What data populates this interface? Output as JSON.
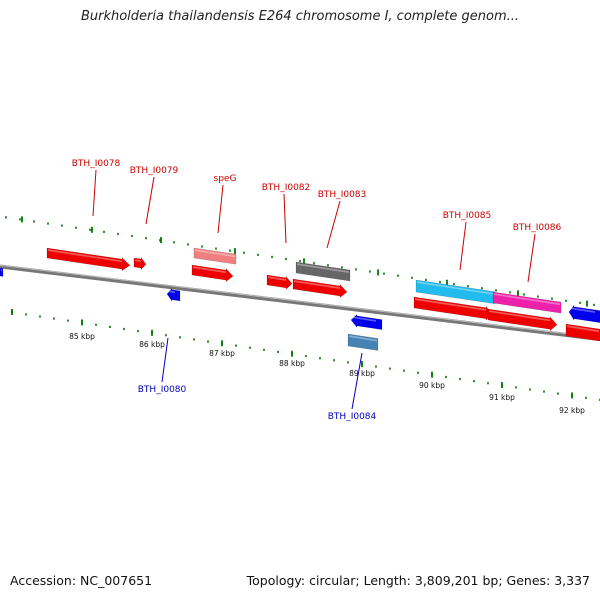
{
  "title": "Burkholderia thailandensis E264 chromosome I, complete genom...",
  "footer": {
    "accession": "Accession: NC_007651",
    "summary": "Topology: circular; Length: 3,809,201 bp; Genes: 3,337"
  },
  "colors": {
    "forward_label": "#cc0000",
    "reverse_label": "#0000bb",
    "forward_gene": "#ee0000",
    "reverse_gene": "#0000ee",
    "pseudo_gene": "#f08080",
    "gray_gene": "#666666",
    "cyan_gene": "#22bbee",
    "pink_gene": "#ee22aa",
    "steel_gene": "#4682b4",
    "backbone": "#777777",
    "tick": "#007700"
  },
  "gene_labels": [
    {
      "id": "bth-i0078",
      "text": "BTH_I0078",
      "strand": "forward"
    },
    {
      "id": "bth-i0079",
      "text": "BTH_I0079",
      "strand": "forward"
    },
    {
      "id": "speg",
      "text": "speG",
      "strand": "forward"
    },
    {
      "id": "bth-i0082",
      "text": "BTH_I0082",
      "strand": "forward"
    },
    {
      "id": "bth-i0083",
      "text": "BTH_I0083",
      "strand": "forward"
    },
    {
      "id": "bth-i0085",
      "text": "BTH_I0085",
      "strand": "forward"
    },
    {
      "id": "bth-i0086",
      "text": "BTH_I0086",
      "strand": "forward"
    },
    {
      "id": "bth-i0080",
      "text": "BTH_I0080",
      "strand": "reverse"
    },
    {
      "id": "bth-i0084",
      "text": "BTH_I0084",
      "strand": "reverse"
    }
  ],
  "kbp_labels": [
    "85 kbp",
    "86 kbp",
    "87 kbp",
    "88 kbp",
    "89 kbp",
    "90 kbp",
    "91 kbp",
    "92 kbp"
  ]
}
